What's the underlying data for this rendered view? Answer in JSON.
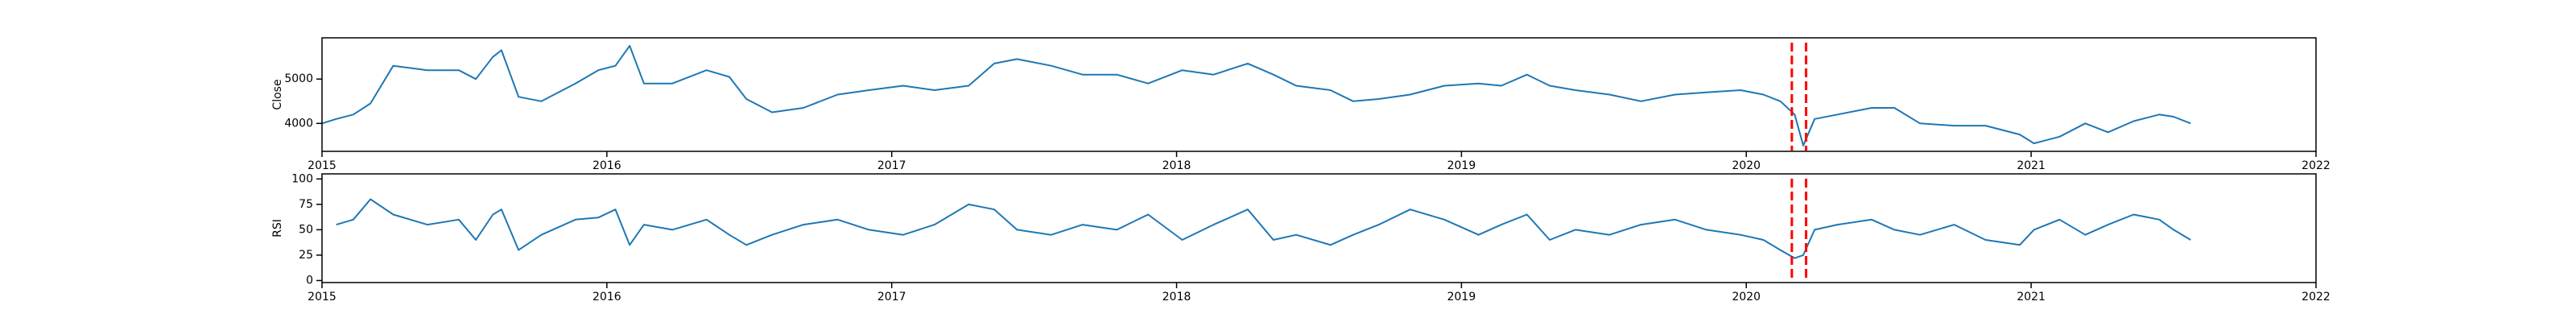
{
  "chart_data": [
    {
      "type": "line",
      "ylabel": "Close",
      "color": "#1f77b4",
      "x": [
        2015.0,
        2015.05,
        2015.11,
        2015.17,
        2015.25,
        2015.37,
        2015.48,
        2015.54,
        2015.6,
        2015.63,
        2015.69,
        2015.77,
        2015.89,
        2015.97,
        2016.03,
        2016.08,
        2016.13,
        2016.23,
        2016.35,
        2016.43,
        2016.49,
        2016.58,
        2016.69,
        2016.81,
        2016.92,
        2017.04,
        2017.15,
        2017.27,
        2017.36,
        2017.44,
        2017.56,
        2017.67,
        2017.79,
        2017.9,
        2018.02,
        2018.13,
        2018.25,
        2018.34,
        2018.42,
        2018.54,
        2018.62,
        2018.71,
        2018.82,
        2018.94,
        2019.06,
        2019.14,
        2019.23,
        2019.31,
        2019.4,
        2019.52,
        2019.63,
        2019.75,
        2019.86,
        2019.98,
        2020.06,
        2020.12,
        2020.17,
        2020.2,
        2020.24,
        2020.32,
        2020.44,
        2020.52,
        2020.61,
        2020.73,
        2020.84,
        2020.96,
        2021.01,
        2021.1,
        2021.19,
        2021.27,
        2021.36,
        2021.45,
        2021.5,
        2021.56
      ],
      "values": [
        4000,
        4100,
        4200,
        4450,
        5300,
        5200,
        5200,
        5000,
        5500,
        5650,
        4600,
        4500,
        4900,
        5200,
        5300,
        5750,
        4900,
        4900,
        5200,
        5050,
        4550,
        4250,
        4350,
        4650,
        4750,
        4850,
        4750,
        4850,
        5350,
        5450,
        5300,
        5100,
        5100,
        4900,
        5200,
        5100,
        5350,
        5100,
        4850,
        4750,
        4500,
        4550,
        4650,
        4850,
        4900,
        4850,
        5100,
        4850,
        4750,
        4650,
        4500,
        4650,
        4700,
        4750,
        4650,
        4500,
        4200,
        3500,
        4100,
        4200,
        4350,
        4350,
        4000,
        3950,
        3950,
        3750,
        3550,
        3700,
        4000,
        3800,
        4050,
        4200,
        4150,
        4000
      ],
      "xlim": [
        2015,
        2022
      ],
      "xticks": [
        2015,
        2016,
        2017,
        2018,
        2019,
        2020,
        2021,
        2022
      ],
      "ylim": [
        3370,
        5930
      ],
      "yticks": [
        4000,
        5000
      ],
      "vlines": [
        2020.16,
        2020.21
      ],
      "vline_color": "#ff0000"
    },
    {
      "type": "line",
      "ylabel": "RSI",
      "color": "#1f77b4",
      "x": [
        2015.0,
        2015.05,
        2015.11,
        2015.17,
        2015.25,
        2015.37,
        2015.48,
        2015.54,
        2015.6,
        2015.63,
        2015.69,
        2015.77,
        2015.89,
        2015.97,
        2016.03,
        2016.08,
        2016.13,
        2016.23,
        2016.35,
        2016.43,
        2016.49,
        2016.58,
        2016.69,
        2016.81,
        2016.92,
        2017.04,
        2017.15,
        2017.27,
        2017.36,
        2017.44,
        2017.56,
        2017.67,
        2017.79,
        2017.9,
        2018.02,
        2018.13,
        2018.25,
        2018.34,
        2018.42,
        2018.54,
        2018.62,
        2018.71,
        2018.82,
        2018.94,
        2019.06,
        2019.14,
        2019.23,
        2019.31,
        2019.4,
        2019.52,
        2019.63,
        2019.75,
        2019.86,
        2019.98,
        2020.06,
        2020.12,
        2020.17,
        2020.2,
        2020.24,
        2020.32,
        2020.44,
        2020.52,
        2020.61,
        2020.73,
        2020.84,
        2020.96,
        2021.01,
        2021.1,
        2021.19,
        2021.27,
        2021.36,
        2021.45,
        2021.5,
        2021.56
      ],
      "values": [
        null,
        55,
        60,
        80,
        65,
        55,
        60,
        40,
        65,
        70,
        30,
        45,
        60,
        62,
        70,
        35,
        55,
        50,
        60,
        45,
        35,
        45,
        55,
        60,
        50,
        45,
        55,
        75,
        70,
        50,
        45,
        55,
        50,
        65,
        40,
        55,
        70,
        40,
        45,
        35,
        45,
        55,
        70,
        60,
        45,
        55,
        65,
        40,
        50,
        45,
        55,
        60,
        50,
        45,
        40,
        30,
        22,
        25,
        50,
        55,
        60,
        50,
        45,
        55,
        40,
        35,
        50,
        60,
        45,
        55,
        65,
        60,
        50,
        40
      ],
      "xlim": [
        2015,
        2022
      ],
      "xticks": [
        2015,
        2016,
        2017,
        2018,
        2019,
        2020,
        2021,
        2022
      ],
      "ylim": [
        -2,
        105
      ],
      "yticks": [
        0,
        25,
        50,
        75,
        100
      ],
      "vlines": [
        2020.16,
        2020.21
      ],
      "vline_color": "#ff0000"
    }
  ]
}
